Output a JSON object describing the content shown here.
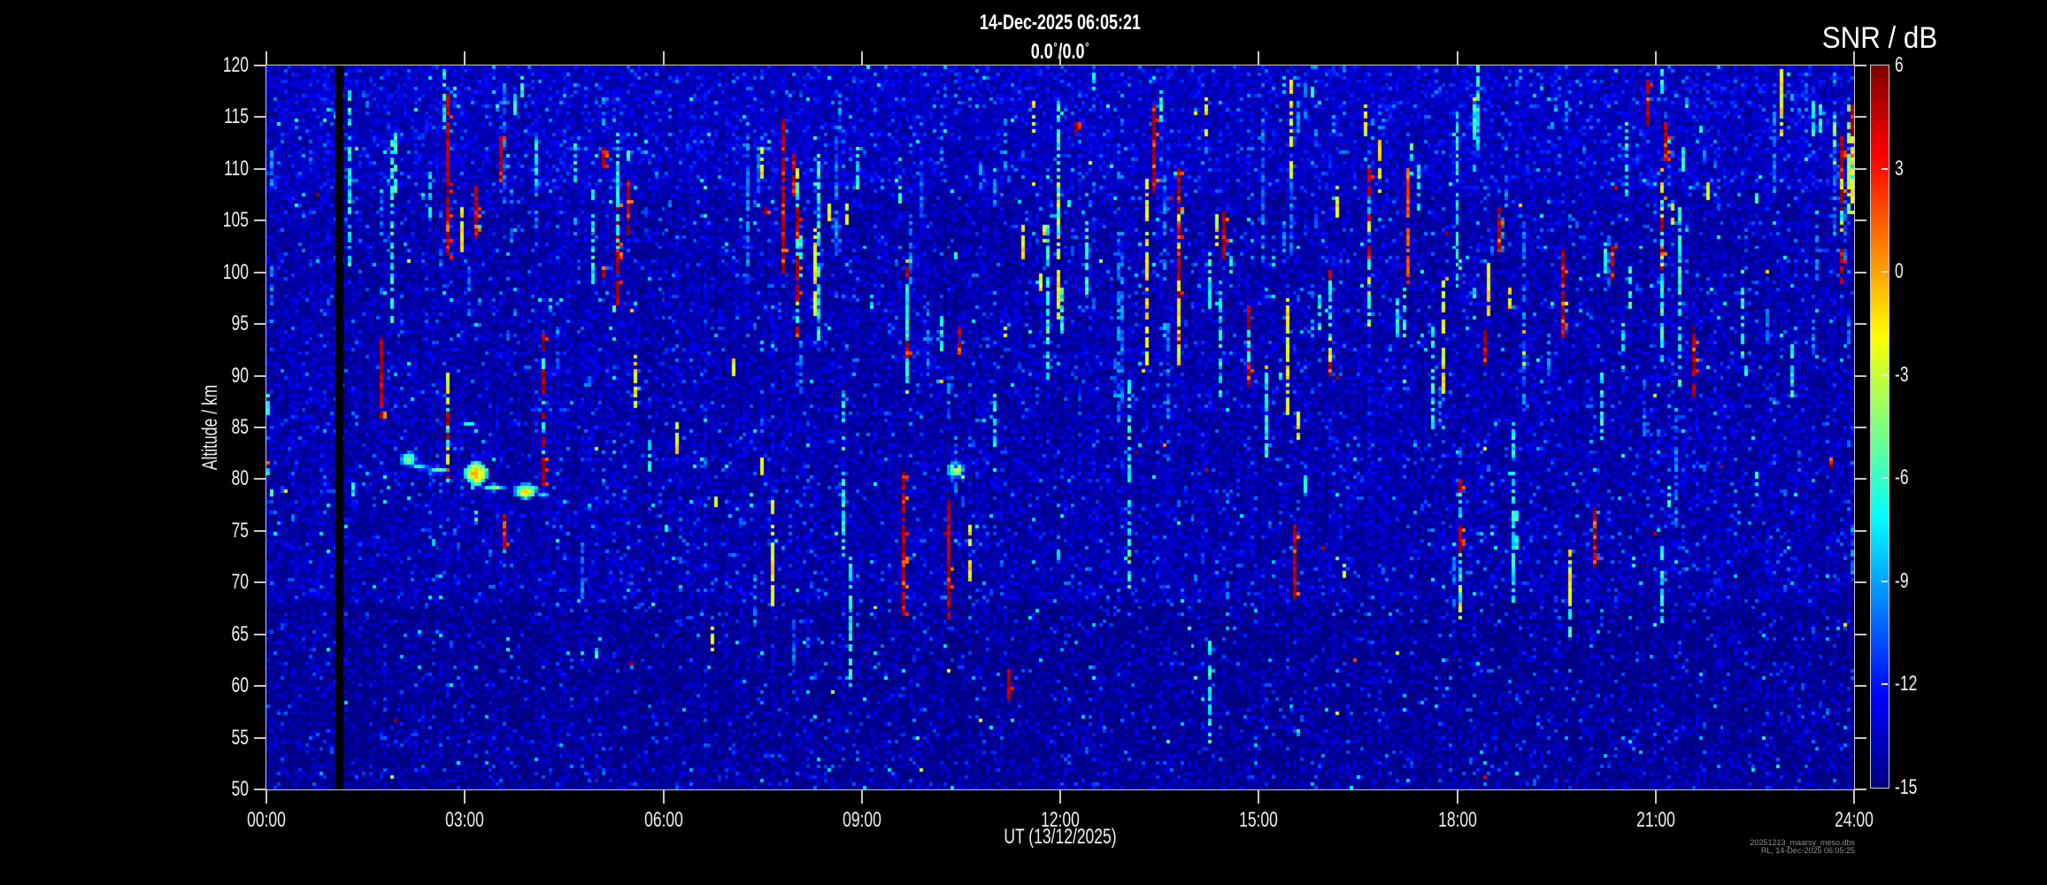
{
  "chart_data": {
    "type": "heatmap",
    "title": "14-Dec-2025 06:05:21",
    "beam": {
      "azimuth": "0.0",
      "zenith": "0.0",
      "degree_symbol": "°",
      "separator": "/"
    },
    "xlabel": "UT (13/12/2025)",
    "ylabel": "Altitude / km",
    "x_ticks": [
      "00:00",
      "03:00",
      "06:00",
      "09:00",
      "12:00",
      "15:00",
      "18:00",
      "21:00",
      "24:00"
    ],
    "x_range_hours": [
      0,
      24
    ],
    "y_ticks": [
      120,
      115,
      110,
      105,
      100,
      95,
      90,
      85,
      80,
      75,
      70,
      65,
      60,
      55,
      50
    ],
    "y_range_km": [
      50,
      120
    ],
    "grid": false,
    "colorbar": {
      "title": "SNR / dB",
      "ticks": [
        6,
        3,
        0,
        -3,
        -6,
        -9,
        -12,
        -15
      ],
      "min": -15,
      "max": 6,
      "colormap": "jet",
      "position": "right"
    },
    "resolution": {
      "time_min": 3.2,
      "alt_km": 0.342
    },
    "noise": {
      "seed": 20251214,
      "base_snr_db": -15,
      "column_bias_db": 1.0,
      "bright_column_fraction": 0.05
    },
    "data_gap_hours": [
      1.04,
      1.17
    ],
    "echo_classes": {
      "red": {
        "snr": [
          4,
          6
        ],
        "dash": 0.93
      },
      "orange": {
        "snr": [
          0.5,
          3
        ],
        "dash": 0.85
      },
      "yellow": {
        "snr": [
          -3.5,
          -0.5
        ],
        "dash": 0.72
      },
      "green": {
        "snr": [
          -5.5,
          -3
        ],
        "dash": 0.72
      },
      "cyan": {
        "snr": [
          -8.5,
          -5
        ],
        "dash": 0.66
      },
      "blue": {
        "snr": [
          -11.5,
          -8.5
        ],
        "dash": 0.58
      },
      "mixed": {
        "segment_classes": [
          "red",
          "cyan",
          "yellow"
        ],
        "segment_weights": [
          0.45,
          0.3,
          0.25
        ],
        "dash": 0.82
      }
    },
    "descending_layer": {
      "description": "Patchy echo layer descending from ~82 km at 02:10 UT to ~77.5 km at ~05:00 UT; bright knot near 10:30 UT at ~81 km",
      "blobs": [
        {
          "t_h": 2.17,
          "alt_km": 81.8,
          "rx_min": 6,
          "ry_km": 0.55,
          "peak_snr_db": -4
        },
        {
          "t_h": 2.33,
          "alt_km": 81.2,
          "rx_min": 8,
          "ry_km": 0.4,
          "peak_snr_db": -6.5
        },
        {
          "t_h": 2.58,
          "alt_km": 80.9,
          "rx_min": 10,
          "ry_km": 0.35,
          "peak_snr_db": -5.5
        },
        {
          "t_h": 3.05,
          "alt_km": 85.5,
          "rx_min": 5,
          "ry_km": 0.4,
          "peak_snr_db": -7
        },
        {
          "t_h": 3.17,
          "alt_km": 84.5,
          "rx_min": 4,
          "ry_km": 0.35,
          "peak_snr_db": -7.5
        },
        {
          "t_h": 3.3,
          "alt_km": 83.5,
          "rx_min": 4,
          "ry_km": 0.35,
          "peak_snr_db": -8
        },
        {
          "t_h": 3.17,
          "alt_km": 80.4,
          "rx_min": 9,
          "ry_km": 0.9,
          "peak_snr_db": -0.5
        },
        {
          "t_h": 3.42,
          "alt_km": 79.3,
          "rx_min": 8,
          "ry_km": 0.5,
          "peak_snr_db": -4.5
        },
        {
          "t_h": 3.93,
          "alt_km": 78.7,
          "rx_min": 8,
          "ry_km": 0.6,
          "peak_snr_db": -2
        },
        {
          "t_h": 4.17,
          "alt_km": 78.4,
          "rx_min": 5,
          "ry_km": 0.4,
          "peak_snr_db": -6.5
        },
        {
          "t_h": 4.5,
          "alt_km": 77.9,
          "rx_min": 4,
          "ry_km": 0.3,
          "peak_snr_db": -8
        },
        {
          "t_h": 4.9,
          "alt_km": 77.6,
          "rx_min": 3,
          "ry_km": 0.3,
          "peak_snr_db": -9.5
        },
        {
          "t_h": 10.45,
          "alt_km": 81.0,
          "rx_min": 7,
          "ry_km": 0.8,
          "peak_snr_db": -2.5
        },
        {
          "t_h": 10.52,
          "alt_km": 80.2,
          "rx_min": 4,
          "ry_km": 0.4,
          "peak_snr_db": -5
        }
      ]
    },
    "major_echoes": [
      {
        "t_h": 0.05,
        "alt_top_km": 81.6,
        "alt_bot_km": 80.2,
        "class": "mixed"
      },
      {
        "t_h": 0.05,
        "alt_top_km": 88.0,
        "alt_bot_km": 86.5,
        "class": "cyan"
      },
      {
        "t_h": 0.07,
        "alt_top_km": 79.0,
        "alt_bot_km": 78.2,
        "class": "cyan"
      },
      {
        "t_h": 0.06,
        "alt_top_km": 112,
        "alt_bot_km": 108,
        "class": "blue"
      },
      {
        "t_h": 1.32,
        "alt_top_km": 79.6,
        "alt_bot_km": 78.2,
        "class": "cyan"
      },
      {
        "t_h": 1.75,
        "alt_top_km": 93.5,
        "alt_bot_km": 86,
        "class": "red"
      },
      {
        "t_h": 2.7,
        "alt_top_km": 120,
        "alt_bot_km": 114,
        "class": "cyan"
      },
      {
        "t_h": 2.75,
        "alt_top_km": 117,
        "alt_bot_km": 101.5,
        "class": "red"
      },
      {
        "t_h": 2.73,
        "alt_top_km": 90,
        "alt_bot_km": 80,
        "class": "mixed"
      },
      {
        "t_h": 3.05,
        "alt_top_km": 102,
        "alt_bot_km": 95,
        "class": "blue"
      },
      {
        "t_h": 4.2,
        "alt_top_km": 94,
        "alt_bot_km": 79.5,
        "class": "mixed"
      },
      {
        "t_h": 4.95,
        "alt_top_km": 108,
        "alt_bot_km": 99,
        "class": "cyan"
      },
      {
        "t_h": 5.3,
        "alt_top_km": 107,
        "alt_bot_km": 97,
        "class": "mixed"
      },
      {
        "t_h": 5.55,
        "alt_top_km": 92,
        "alt_bot_km": 87,
        "class": "yellow"
      },
      {
        "t_h": 7.3,
        "alt_top_km": 115,
        "alt_bot_km": 99,
        "class": "blue"
      },
      {
        "t_h": 7.82,
        "alt_top_km": 115,
        "alt_bot_km": 100,
        "class": "red"
      },
      {
        "t_h": 8.05,
        "alt_top_km": 110,
        "alt_bot_km": 94,
        "class": "mixed"
      },
      {
        "t_h": 8.3,
        "alt_top_km": 104,
        "alt_bot_km": 96,
        "class": "yellow"
      },
      {
        "t_h": 9.63,
        "alt_top_km": 80.5,
        "alt_bot_km": 67,
        "class": "red"
      },
      {
        "t_h": 9.7,
        "alt_top_km": 101,
        "alt_bot_km": 87.5,
        "class": "mixed"
      },
      {
        "t_h": 10.33,
        "alt_top_km": 78,
        "alt_bot_km": 66.5,
        "class": "red"
      },
      {
        "t_h": 11.0,
        "alt_top_km": 88,
        "alt_bot_km": 83,
        "class": "cyan"
      },
      {
        "t_h": 11.15,
        "alt_top_km": 115,
        "alt_bot_km": 110,
        "class": "blue"
      },
      {
        "t_h": 12.4,
        "alt_top_km": 105,
        "alt_bot_km": 98,
        "class": "cyan"
      },
      {
        "t_h": 13.42,
        "alt_top_km": 116,
        "alt_bot_km": 108,
        "class": "red"
      },
      {
        "t_h": 13.8,
        "alt_top_km": 110,
        "alt_bot_km": 92,
        "class": "mixed"
      },
      {
        "t_h": 14.4,
        "alt_top_km": 98,
        "alt_bot_km": 88,
        "class": "cyan"
      },
      {
        "t_h": 14.83,
        "alt_top_km": 97,
        "alt_bot_km": 89,
        "class": "red"
      },
      {
        "t_h": 15.1,
        "alt_top_km": 90,
        "alt_bot_km": 82,
        "class": "cyan"
      },
      {
        "t_h": 15.57,
        "alt_top_km": 75.5,
        "alt_bot_km": 68.5,
        "class": "red"
      },
      {
        "t_h": 16.1,
        "alt_top_km": 100,
        "alt_bot_km": 90,
        "class": "mixed"
      },
      {
        "t_h": 16.67,
        "alt_top_km": 110,
        "alt_bot_km": 95,
        "class": "mixed"
      },
      {
        "t_h": 17.25,
        "alt_top_km": 110,
        "alt_bot_km": 99,
        "class": "orange"
      },
      {
        "t_h": 17.6,
        "alt_top_km": 95,
        "alt_bot_km": 85,
        "class": "cyan"
      },
      {
        "t_h": 18.05,
        "alt_top_km": 80,
        "alt_bot_km": 66.5,
        "class": "mixed"
      },
      {
        "t_h": 18.3,
        "alt_top_km": 120,
        "alt_bot_km": 112,
        "class": "cyan"
      },
      {
        "t_h": 19.0,
        "alt_top_km": 96,
        "alt_bot_km": 90,
        "class": "yellow"
      },
      {
        "t_h": 19.62,
        "alt_top_km": 102,
        "alt_bot_km": 94,
        "class": "red"
      },
      {
        "t_h": 20.2,
        "alt_top_km": 90,
        "alt_bot_km": 84,
        "class": "cyan"
      },
      {
        "t_h": 21.1,
        "alt_top_km": 110,
        "alt_bot_km": 96,
        "class": "mixed"
      },
      {
        "t_h": 21.55,
        "alt_top_km": 95,
        "alt_bot_km": 88,
        "class": "red"
      },
      {
        "t_h": 22.3,
        "alt_top_km": 100,
        "alt_bot_km": 92,
        "class": "cyan"
      },
      {
        "t_h": 22.55,
        "alt_top_km": 80.5,
        "alt_bot_km": 78.5,
        "class": "cyan"
      },
      {
        "t_h": 22.8,
        "alt_top_km": 116,
        "alt_bot_km": 108,
        "class": "blue"
      },
      {
        "t_h": 23.7,
        "alt_top_km": 115,
        "alt_bot_km": 108.5,
        "class": "green"
      },
      {
        "t_h": 23.8,
        "alt_top_km": 102,
        "alt_bot_km": 99,
        "class": "red"
      },
      {
        "t_h": 23.82,
        "alt_top_km": 113,
        "alt_bot_km": 104,
        "class": "mixed"
      },
      {
        "t_h": 23.92,
        "alt_top_km": 116,
        "alt_bot_km": 106,
        "class": "green"
      },
      {
        "t_h": 23.95,
        "alt_top_km": 116,
        "alt_bot_km": 106,
        "class": "mixed"
      },
      {
        "t_h": 23.97,
        "alt_top_km": 112,
        "alt_bot_km": 107,
        "class": "yellow"
      }
    ],
    "minor_echoes": {
      "count": 260,
      "alt_top_km": {
        "min": 52,
        "max": 120,
        "bias_exponent": 0.42
      },
      "length_km": {
        "typical_max": 5,
        "long_max": 20,
        "long_fraction": 0.22
      },
      "class_weights": {
        "blue": 0.4,
        "cyan": 0.32,
        "yellow": 0.14,
        "red": 0.14
      },
      "sparse_before_hour": 1.55,
      "sparse_keep_fraction": 0.22
    },
    "dots": {
      "count": 170,
      "class_weights": {
        "blue": 0.5,
        "cyan": 0.3,
        "yellow": 0.12,
        "red": 0.08
      }
    }
  },
  "footer": {
    "line1": "20251213_maarsy_meso.dbs",
    "line2": "RL, 14-Dec-2025 06:05:25"
  }
}
